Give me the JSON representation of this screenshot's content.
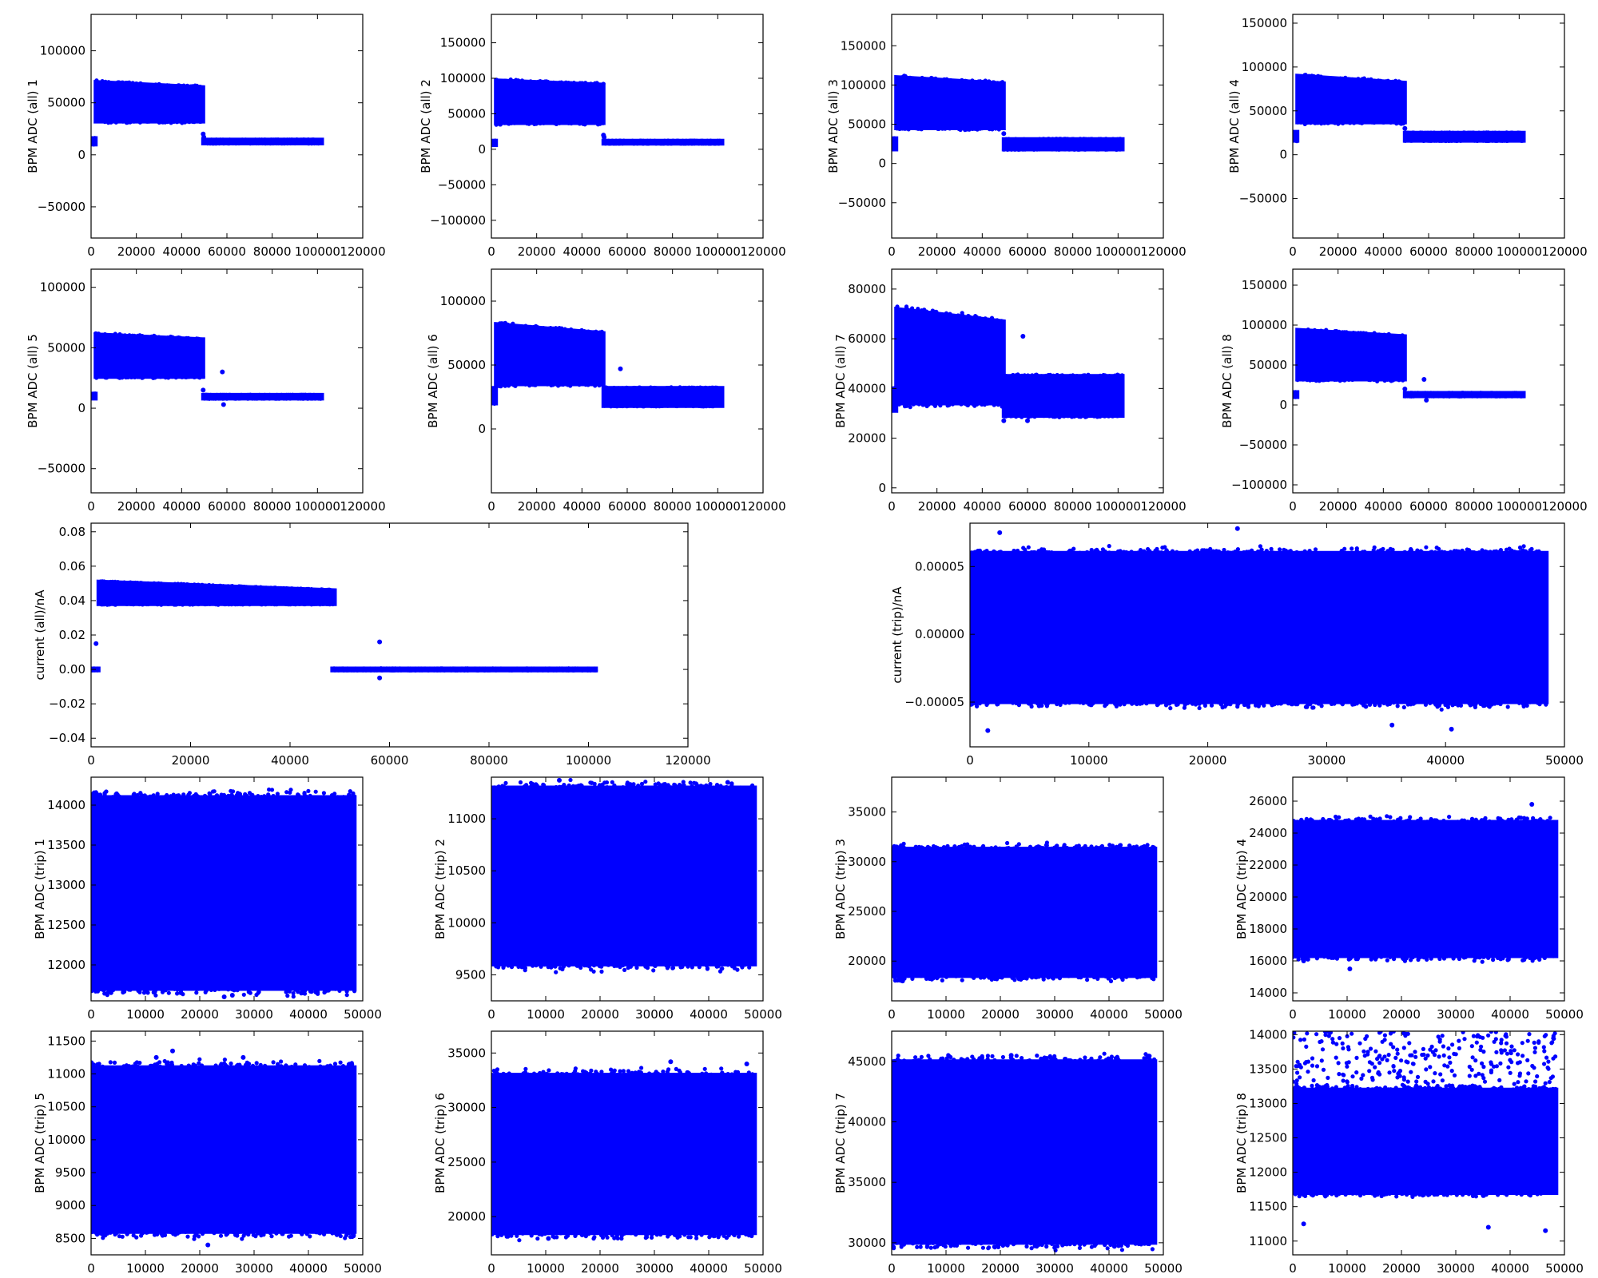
{
  "figure": {
    "marker_color": "#0000ff",
    "background": "#ffffff"
  },
  "chart_data": [
    {
      "type": "scatter",
      "ylabel": "BPM ADC (all) 1",
      "xlim": [
        0,
        120000
      ],
      "ylim": [
        -80000,
        135000
      ],
      "xticks": [
        0,
        20000,
        40000,
        60000,
        80000,
        100000,
        120000
      ],
      "yticks": [
        -50000,
        0,
        50000,
        100000
      ],
      "segments": [
        {
          "x0": 1000,
          "x1": 2000,
          "ylo": 10000,
          "yhi": 16000
        },
        {
          "x0": 2000,
          "x1": 49500,
          "ylo_start": 32000,
          "yhi_start": 70000,
          "ylo_end": 32000,
          "yhi_end": 65000
        },
        {
          "x0": 49500,
          "x1": 102000,
          "ylo": 11000,
          "yhi": 14500
        }
      ],
      "outliers": [
        [
          49500,
          20000
        ],
        [
          49800,
          17000
        ],
        [
          1200,
          14000
        ]
      ]
    },
    {
      "type": "scatter",
      "ylabel": "BPM ADC (all) 2",
      "xlim": [
        0,
        120000
      ],
      "ylim": [
        -125000,
        190000
      ],
      "xticks": [
        0,
        20000,
        40000,
        60000,
        80000,
        100000,
        120000
      ],
      "yticks": [
        -100000,
        -50000,
        0,
        50000,
        100000,
        150000
      ],
      "segments": [
        {
          "x0": 1000,
          "x1": 2000,
          "ylo": 6000,
          "yhi": 12000
        },
        {
          "x0": 2000,
          "x1": 49500,
          "ylo_start": 37000,
          "yhi_start": 97000,
          "ylo_end": 37000,
          "yhi_end": 91000
        },
        {
          "x0": 49500,
          "x1": 102000,
          "ylo": 8000,
          "yhi": 12000
        }
      ],
      "outliers": [
        [
          49500,
          20000
        ],
        [
          49800,
          17000
        ]
      ]
    },
    {
      "type": "scatter",
      "ylabel": "BPM ADC (all) 3",
      "xlim": [
        0,
        120000
      ],
      "ylim": [
        -95000,
        190000
      ],
      "xticks": [
        0,
        20000,
        40000,
        60000,
        80000,
        100000,
        120000
      ],
      "yticks": [
        -50000,
        0,
        50000,
        100000,
        150000
      ],
      "segments": [
        {
          "x0": 1000,
          "x1": 2000,
          "ylo": 18000,
          "yhi": 32000
        },
        {
          "x0": 2000,
          "x1": 49500,
          "ylo_start": 45000,
          "yhi_start": 110000,
          "ylo_end": 45000,
          "yhi_end": 102000
        },
        {
          "x0": 49500,
          "x1": 102000,
          "ylo": 18000,
          "yhi": 31000
        }
      ],
      "outliers": [
        [
          49500,
          38000
        ]
      ]
    },
    {
      "type": "scatter",
      "ylabel": "BPM ADC (all) 4",
      "xlim": [
        0,
        120000
      ],
      "ylim": [
        -95000,
        160000
      ],
      "xticks": [
        0,
        20000,
        40000,
        60000,
        80000,
        100000,
        120000
      ],
      "yticks": [
        -50000,
        0,
        50000,
        100000,
        150000
      ],
      "segments": [
        {
          "x0": 1000,
          "x1": 2000,
          "ylo": 16000,
          "yhi": 26000
        },
        {
          "x0": 2000,
          "x1": 49500,
          "ylo_start": 37000,
          "yhi_start": 90000,
          "ylo_end": 37000,
          "yhi_end": 82000
        },
        {
          "x0": 49500,
          "x1": 102000,
          "ylo": 16000,
          "yhi": 25000
        }
      ],
      "outliers": [
        [
          49500,
          30000
        ]
      ]
    },
    {
      "type": "scatter",
      "ylabel": "BPM ADC (all) 5",
      "xlim": [
        0,
        120000
      ],
      "ylim": [
        -70000,
        115000
      ],
      "xticks": [
        0,
        20000,
        40000,
        60000,
        80000,
        100000,
        120000
      ],
      "yticks": [
        -50000,
        0,
        50000,
        100000
      ],
      "segments": [
        {
          "x0": 1000,
          "x1": 2000,
          "ylo": 8000,
          "yhi": 12000
        },
        {
          "x0": 2000,
          "x1": 49500,
          "ylo_start": 26000,
          "yhi_start": 61000,
          "ylo_end": 26000,
          "yhi_end": 57000
        },
        {
          "x0": 49500,
          "x1": 102000,
          "ylo": 8000,
          "yhi": 11000
        }
      ],
      "outliers": [
        [
          49500,
          15000
        ],
        [
          58000,
          30000
        ],
        [
          58500,
          3000
        ]
      ]
    },
    {
      "type": "scatter",
      "ylabel": "BPM ADC (all) 6",
      "xlim": [
        0,
        120000
      ],
      "ylim": [
        -50000,
        125000
      ],
      "xticks": [
        0,
        20000,
        40000,
        60000,
        80000,
        100000,
        120000
      ],
      "yticks": [
        0,
        50000,
        100000
      ],
      "segments": [
        {
          "x0": 1000,
          "x1": 2000,
          "ylo": 20000,
          "yhi": 32000
        },
        {
          "x0": 2000,
          "x1": 49500,
          "ylo_start": 35000,
          "yhi_start": 82000,
          "ylo_end": 35000,
          "yhi_end": 75000
        },
        {
          "x0": 49500,
          "x1": 102000,
          "ylo": 18000,
          "yhi": 32000
        }
      ],
      "outliers": [
        [
          57000,
          47000
        ]
      ]
    },
    {
      "type": "scatter",
      "ylabel": "BPM ADC (all) 7",
      "xlim": [
        0,
        120000
      ],
      "ylim": [
        -2000,
        88000
      ],
      "xticks": [
        0,
        20000,
        40000,
        60000,
        80000,
        100000,
        120000
      ],
      "yticks": [
        0,
        20000,
        40000,
        60000,
        80000
      ],
      "segments": [
        {
          "x0": 1000,
          "x1": 2000,
          "ylo": 31000,
          "yhi": 40000
        },
        {
          "x0": 2000,
          "x1": 49500,
          "ylo_start": 34000,
          "yhi_start": 72000,
          "ylo_end": 34000,
          "yhi_end": 67000
        },
        {
          "x0": 49500,
          "x1": 102000,
          "ylo": 29000,
          "yhi": 45000
        }
      ],
      "outliers": [
        [
          58000,
          61000
        ],
        [
          49500,
          27000
        ],
        [
          60000,
          27000
        ]
      ]
    },
    {
      "type": "scatter",
      "ylabel": "BPM ADC (all) 8",
      "xlim": [
        0,
        120000
      ],
      "ylim": [
        -110000,
        170000
      ],
      "xticks": [
        0,
        20000,
        40000,
        60000,
        80000,
        100000,
        120000
      ],
      "yticks": [
        -100000,
        -50000,
        0,
        50000,
        100000,
        150000
      ],
      "segments": [
        {
          "x0": 1000,
          "x1": 2000,
          "ylo": 10000,
          "yhi": 16000
        },
        {
          "x0": 2000,
          "x1": 49500,
          "ylo_start": 32000,
          "yhi_start": 94000,
          "ylo_end": 32000,
          "yhi_end": 86000
        },
        {
          "x0": 49500,
          "x1": 102000,
          "ylo": 11000,
          "yhi": 15000
        }
      ],
      "outliers": [
        [
          58000,
          32000
        ],
        [
          59000,
          6000
        ],
        [
          49500,
          20000
        ]
      ]
    },
    {
      "type": "scatter",
      "ylabel": "current (all)/nA",
      "xlim": [
        0,
        120000
      ],
      "ylim": [
        -0.045,
        0.085
      ],
      "xticks": [
        0,
        20000,
        40000,
        60000,
        80000,
        100000,
        120000
      ],
      "yticks": [
        -0.04,
        -0.02,
        0.0,
        0.02,
        0.04,
        0.06,
        0.08
      ],
      "ytick_labels": [
        "−0.04",
        "−0.02",
        "0.00",
        "0.02",
        "0.04",
        "0.06",
        "0.08"
      ],
      "segments": [
        {
          "x0": 0,
          "x1": 1500,
          "ylo": -0.0005,
          "yhi": 0.0005
        },
        {
          "x0": 1500,
          "x1": 49000,
          "ylo_start": 0.038,
          "yhi_start": 0.051,
          "ylo_end": 0.038,
          "yhi_end": 0.046
        },
        {
          "x0": 48500,
          "x1": 101500,
          "ylo": -0.0005,
          "yhi": 0.0005
        }
      ],
      "outliers": [
        [
          1000,
          0.015
        ],
        [
          58000,
          0.016
        ],
        [
          58000,
          -0.005
        ]
      ]
    },
    {
      "type": "scatter",
      "ylabel": "current (trip)/nA",
      "xlim": [
        0,
        50000
      ],
      "ylim": [
        -8.3e-05,
        8.2e-05
      ],
      "xticks": [
        0,
        10000,
        20000,
        30000,
        40000,
        50000
      ],
      "yticks": [
        -5e-05,
        0.0,
        5e-05
      ],
      "ytick_labels": [
        "−0.00005",
        "0.00000",
        "0.00005"
      ],
      "segments": [
        {
          "x0": 0,
          "x1": 48500,
          "ylo": -5e-05,
          "yhi": 6e-05
        }
      ],
      "outliers": [
        [
          2500,
          7.5e-05
        ],
        [
          22500,
          7.8e-05
        ],
        [
          1500,
          -7.1e-05
        ],
        [
          40500,
          -7e-05
        ],
        [
          35500,
          -6.7e-05
        ]
      ]
    },
    {
      "type": "scatter",
      "ylabel": "BPM ADC (trip) 1",
      "xlim": [
        0,
        50000
      ],
      "ylim": [
        11550,
        14350
      ],
      "xticks": [
        0,
        10000,
        20000,
        30000,
        40000,
        50000
      ],
      "yticks": [
        12000,
        12500,
        13000,
        13500,
        14000
      ],
      "segments": [
        {
          "x0": 0,
          "x1": 48500,
          "ylo": 11700,
          "yhi": 14100
        }
      ],
      "outliers": [
        [
          1000,
          14100
        ],
        [
          24500,
          11600
        ],
        [
          26000,
          11620
        ]
      ]
    },
    {
      "type": "scatter",
      "ylabel": "BPM ADC (trip) 2",
      "xlim": [
        0,
        50000
      ],
      "ylim": [
        9250,
        11400
      ],
      "xticks": [
        0,
        10000,
        20000,
        30000,
        40000,
        50000
      ],
      "yticks": [
        9500,
        10000,
        10500,
        11000
      ],
      "segments": [
        {
          "x0": 0,
          "x1": 48500,
          "ylo": 9600,
          "yhi": 11300
        }
      ],
      "outliers": [
        [
          12500,
          11370
        ],
        [
          43500,
          11350
        ],
        [
          1000,
          11250
        ]
      ]
    },
    {
      "type": "scatter",
      "ylabel": "BPM ADC (trip) 3",
      "xlim": [
        0,
        50000
      ],
      "ylim": [
        16000,
        38500
      ],
      "xticks": [
        0,
        10000,
        20000,
        30000,
        40000,
        50000
      ],
      "yticks": [
        20000,
        25000,
        30000,
        35000
      ],
      "segments": [
        {
          "x0": 0,
          "x1": 48500,
          "ylo": 18500,
          "yhi": 31300
        }
      ],
      "outliers": [
        [
          2000,
          18000
        ],
        [
          27000,
          31500
        ]
      ]
    },
    {
      "type": "scatter",
      "ylabel": "BPM ADC (trip) 4",
      "xlim": [
        0,
        50000
      ],
      "ylim": [
        13500,
        27500
      ],
      "xticks": [
        0,
        10000,
        20000,
        30000,
        40000,
        50000
      ],
      "yticks": [
        14000,
        16000,
        18000,
        20000,
        22000,
        24000,
        26000
      ],
      "segments": [
        {
          "x0": 0,
          "x1": 48500,
          "ylo": 16300,
          "yhi": 24700
        }
      ],
      "outliers": [
        [
          44000,
          25800
        ],
        [
          2000,
          16000
        ],
        [
          10500,
          15500
        ]
      ]
    },
    {
      "type": "scatter",
      "ylabel": "BPM ADC (trip) 5",
      "xlim": [
        0,
        50000
      ],
      "ylim": [
        8250,
        11650
      ],
      "xticks": [
        0,
        10000,
        20000,
        30000,
        40000,
        50000
      ],
      "yticks": [
        8500,
        9000,
        9500,
        10000,
        10500,
        11000,
        11500
      ],
      "segments": [
        {
          "x0": 0,
          "x1": 48500,
          "ylo": 8600,
          "yhi": 11100
        }
      ],
      "outliers": [
        [
          15000,
          11350
        ],
        [
          12000,
          11250
        ],
        [
          21500,
          8400
        ],
        [
          28000,
          11250
        ]
      ]
    },
    {
      "type": "scatter",
      "ylabel": "BPM ADC (trip) 6",
      "xlim": [
        0,
        50000
      ],
      "ylim": [
        16500,
        37000
      ],
      "xticks": [
        0,
        10000,
        20000,
        30000,
        40000,
        50000
      ],
      "yticks": [
        20000,
        25000,
        30000,
        35000
      ],
      "segments": [
        {
          "x0": 0,
          "x1": 48500,
          "ylo": 18500,
          "yhi": 33000
        }
      ],
      "outliers": [
        [
          47000,
          34000
        ],
        [
          33000,
          34200
        ],
        [
          10500,
          18000
        ]
      ]
    },
    {
      "type": "scatter",
      "ylabel": "BPM ADC (trip) 7",
      "xlim": [
        0,
        50000
      ],
      "ylim": [
        29000,
        47500
      ],
      "xticks": [
        0,
        10000,
        20000,
        30000,
        40000,
        50000
      ],
      "yticks": [
        30000,
        35000,
        40000,
        45000
      ],
      "segments": [
        {
          "x0": 0,
          "x1": 48500,
          "ylo": 30000,
          "yhi": 45000
        }
      ],
      "outliers": [
        [
          22000,
          45500
        ],
        [
          5500,
          30000
        ],
        [
          41000,
          29700
        ]
      ]
    },
    {
      "type": "scatter",
      "ylabel": "BPM ADC (trip) 8",
      "xlim": [
        0,
        50000
      ],
      "ylim": [
        10800,
        14050
      ],
      "xticks": [
        0,
        10000,
        20000,
        30000,
        40000,
        50000
      ],
      "yticks": [
        11000,
        11500,
        12000,
        12500,
        13000,
        13500,
        14000
      ],
      "segments": [
        {
          "x0": 0,
          "x1": 48500,
          "ylo": 11700,
          "yhi": 13200
        },
        {
          "x0": 0,
          "x1": 48500,
          "ylo": 13200,
          "yhi": 14050,
          "sparse": true
        }
      ],
      "outliers": [
        [
          2000,
          11250
        ],
        [
          36000,
          11200
        ],
        [
          46500,
          11150
        ]
      ]
    }
  ]
}
